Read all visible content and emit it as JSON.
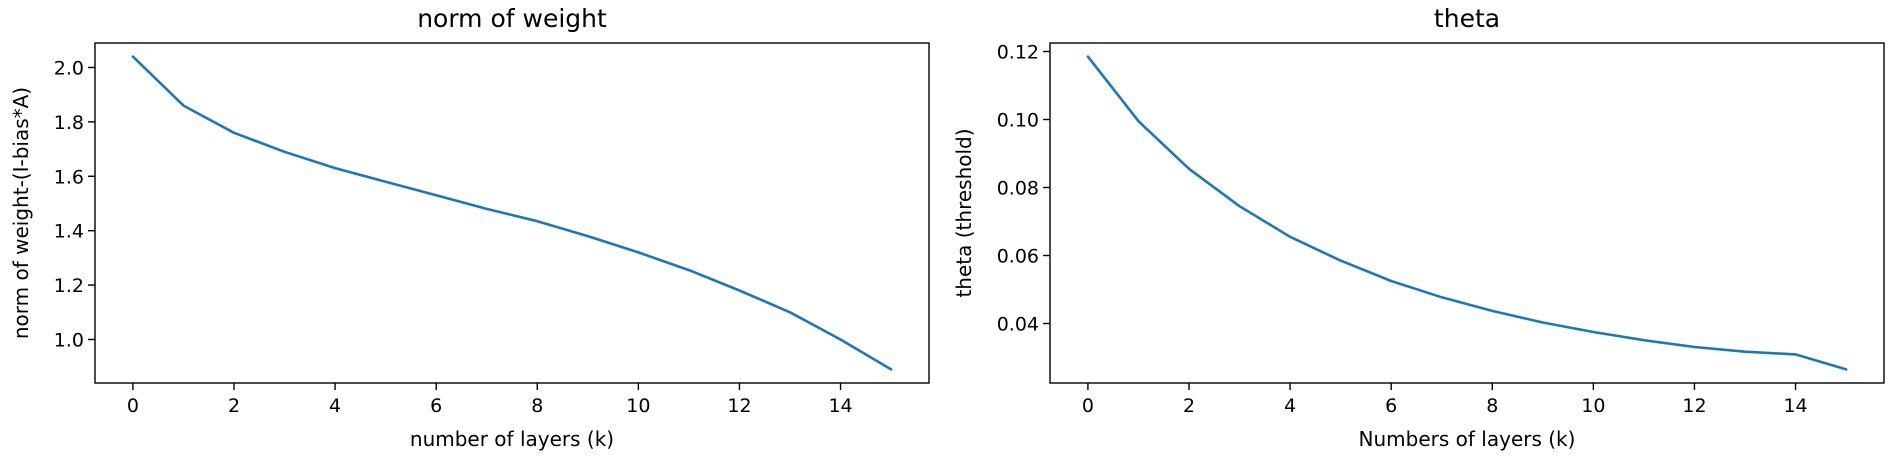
{
  "chart_data": [
    {
      "type": "line",
      "title": "norm of weight",
      "xlabel": "number of layers (k)",
      "ylabel": "norm of weight-(I-bias*A)",
      "xlim": [
        -0.75,
        15.75
      ],
      "ylim": [
        0.84,
        2.09
      ],
      "xticks": [
        0,
        2,
        4,
        6,
        8,
        10,
        12,
        14
      ],
      "xtick_labels": [
        "0",
        "2",
        "4",
        "6",
        "8",
        "10",
        "12",
        "14"
      ],
      "yticks": [
        1.0,
        1.2,
        1.4,
        1.6,
        1.8,
        2.0
      ],
      "ytick_labels": [
        "1.0",
        "1.2",
        "1.4",
        "1.6",
        "1.8",
        "2.0"
      ],
      "grid": false,
      "series": [
        {
          "color": "#1f77b4",
          "x": [
            0,
            1,
            2,
            3,
            4,
            5,
            6,
            7,
            8,
            9,
            10,
            11,
            12,
            13,
            14,
            15
          ],
          "y": [
            2.04,
            1.86,
            1.76,
            1.69,
            1.63,
            1.58,
            1.53,
            1.48,
            1.435,
            1.38,
            1.32,
            1.255,
            1.18,
            1.1,
            1.0,
            0.89
          ]
        }
      ]
    },
    {
      "type": "line",
      "title": "theta",
      "xlabel": "Numbers of layers (k)",
      "ylabel": "theta (threshold)",
      "xlim": [
        -0.75,
        15.75
      ],
      "ylim": [
        0.0225,
        0.1225
      ],
      "xticks": [
        0,
        2,
        4,
        6,
        8,
        10,
        12,
        14
      ],
      "xtick_labels": [
        "0",
        "2",
        "4",
        "6",
        "8",
        "10",
        "12",
        "14"
      ],
      "yticks": [
        0.04,
        0.06,
        0.08,
        0.1,
        0.12
      ],
      "ytick_labels": [
        "0.04",
        "0.06",
        "0.08",
        "0.10",
        "0.12"
      ],
      "grid": false,
      "series": [
        {
          "color": "#1f77b4",
          "x": [
            0,
            1,
            2,
            3,
            4,
            5,
            6,
            7,
            8,
            9,
            10,
            11,
            12,
            13,
            14,
            15
          ],
          "y": [
            0.1185,
            0.0995,
            0.0855,
            0.0745,
            0.0655,
            0.0585,
            0.0525,
            0.0477,
            0.0437,
            0.0403,
            0.0375,
            0.0351,
            0.0331,
            0.0317,
            0.0309,
            0.0265
          ]
        }
      ]
    }
  ]
}
